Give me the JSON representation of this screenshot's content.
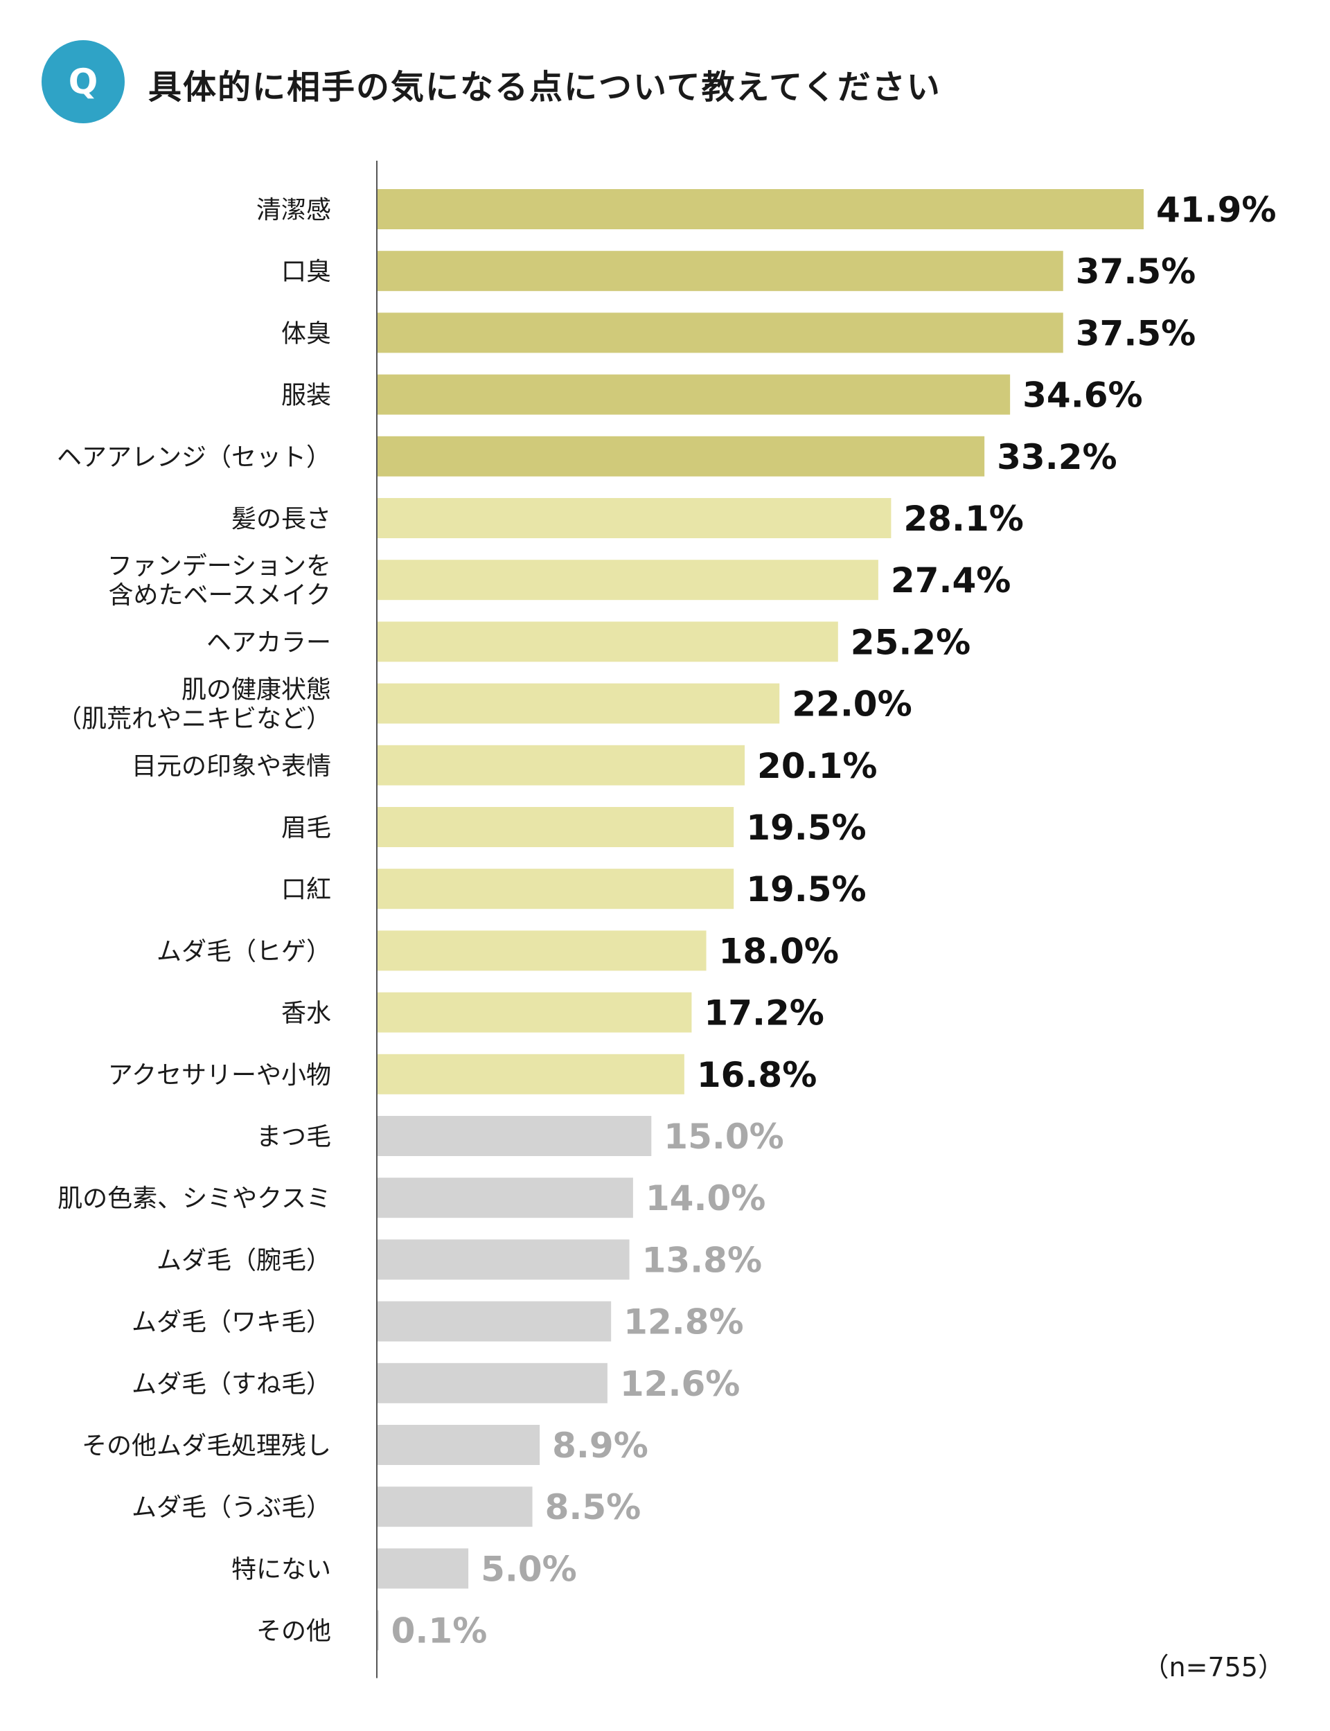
{
  "header": {
    "badge": "Q",
    "title": "具体的に相手の気になる点について教えてください"
  },
  "sample_size": "（n=755）",
  "colors": {
    "badge": "#2fa3c6",
    "tier1_bar": "#d0ca7a",
    "tier2_bar": "#e8e5a8",
    "tier3_bar": "#d3d3d3",
    "tier1_value": "#111111",
    "tier2_value": "#111111",
    "tier3_value": "#a9a9a9",
    "axis": "#555555"
  },
  "chart_data": {
    "type": "bar",
    "orientation": "horizontal",
    "title": "具体的に相手の気になる点について教えてください",
    "categories": [
      [
        "清潔感"
      ],
      [
        "口臭"
      ],
      [
        "体臭"
      ],
      [
        "服装"
      ],
      [
        "ヘアアレンジ（セット）"
      ],
      [
        "髪の長さ"
      ],
      [
        "ファンデーションを",
        "含めたベースメイク"
      ],
      [
        "ヘアカラー"
      ],
      [
        "肌の健康状態",
        "（肌荒れやニキビなど）"
      ],
      [
        "目元の印象や表情"
      ],
      [
        "眉毛"
      ],
      [
        "口紅"
      ],
      [
        "ムダ毛（ヒゲ）"
      ],
      [
        "香水"
      ],
      [
        "アクセサリーや小物"
      ],
      [
        "まつ毛"
      ],
      [
        "肌の色素、シミやクスミ"
      ],
      [
        "ムダ毛（腕毛）"
      ],
      [
        "ムダ毛（ワキ毛）"
      ],
      [
        "ムダ毛（すね毛）"
      ],
      [
        "その他ムダ毛処理残し"
      ],
      [
        "ムダ毛（うぶ毛）"
      ],
      [
        "特にない"
      ],
      [
        "その他"
      ]
    ],
    "values": [
      41.9,
      37.5,
      37.5,
      34.6,
      33.2,
      28.1,
      27.4,
      25.2,
      22.0,
      20.1,
      19.5,
      19.5,
      18.0,
      17.2,
      16.8,
      15.0,
      14.0,
      13.8,
      12.8,
      12.6,
      8.9,
      8.5,
      5.0,
      0.1
    ],
    "value_labels": [
      "41.9%",
      "37.5%",
      "37.5%",
      "34.6%",
      "33.2%",
      "28.1%",
      "27.4%",
      "25.2%",
      "22.0%",
      "20.1%",
      "19.5%",
      "19.5%",
      "18.0%",
      "17.2%",
      "16.8%",
      "15.0%",
      "14.0%",
      "13.8%",
      "12.8%",
      "12.6%",
      "8.9%",
      "8.5%",
      "5.0%",
      "0.1%"
    ],
    "tiers": [
      1,
      1,
      1,
      1,
      1,
      2,
      2,
      2,
      2,
      2,
      2,
      2,
      2,
      2,
      2,
      3,
      3,
      3,
      3,
      3,
      3,
      3,
      3,
      3
    ],
    "unit": "%",
    "xlim": [
      0,
      41.9
    ],
    "grid": false,
    "legend": "none"
  }
}
